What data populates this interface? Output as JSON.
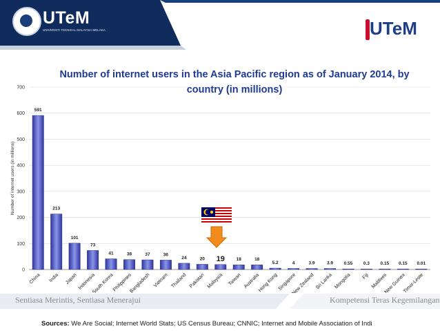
{
  "header": {
    "left_logo_text": "UTeM",
    "left_logo_subtitle": "UNIVERSITI TEKNIKAL MALAYSIA MELAKA",
    "right_logo_text": "UTeM",
    "colors": {
      "dark_blue": "#0f2c5c",
      "brand_blue": "#1e3f86",
      "brand_red": "#c8102e"
    }
  },
  "footer": {
    "motto_left": "Sentiasa Merintis, Sentiasa Menerajui",
    "motto_right": "Kompetensi Teras Kegemilangan",
    "sources_label": "Sources:",
    "sources_text": "We Are Social; Internet World Stats; US Census Bureau; CNNIC; Internet and Mobile Association of Indi"
  },
  "chart_data": {
    "type": "bar",
    "title": "Number of internet users in the Asia Pacific region as of January 2014, by country (in millions)",
    "title_lines": [
      "Number of internet users in the Asia Pacific region as of January 2014, by",
      "country (in millions)"
    ],
    "ylabel": "Number of internet users (in millions)",
    "ylim": [
      0,
      700
    ],
    "yticks": [
      0,
      100,
      200,
      300,
      400,
      500,
      600,
      700
    ],
    "grid": true,
    "categories": [
      "China",
      "India",
      "Japan",
      "Indonesia",
      "South Korea",
      "Philippines",
      "Bangladesh",
      "Vietnam",
      "Thailand",
      "Pakistan",
      "Malaysia",
      "Taiwan",
      "Australia",
      "Hong Kong",
      "Singapore",
      "New Zealand",
      "Sri Lanka",
      "Mongolia",
      "Fiji",
      "Maldives",
      "Papua New Guinea",
      "Timor-Leste"
    ],
    "values": [
      591,
      213,
      101,
      73,
      41,
      38,
      37,
      36,
      24,
      20,
      19,
      18,
      18,
      5.2,
      4,
      3.9,
      3.9,
      0.55,
      0.3,
      0.15,
      0.15,
      0.01
    ],
    "value_labels": [
      "591",
      "213",
      "101",
      "73",
      "41",
      "38",
      "37",
      "36",
      "24",
      "20",
      "19",
      "18",
      "18",
      "5.2",
      "4",
      "3.9",
      "3.9",
      "0.55",
      "0.3",
      "0.15",
      "0.15",
      "0.01"
    ],
    "highlight_category": "Malaysia",
    "colors": {
      "bar": "#4a52b8",
      "bar_edge": "#2a2f86",
      "highlight_arrow": "#f28c1c",
      "grid": "#d9d9d9",
      "title": "#1f3a93"
    }
  }
}
